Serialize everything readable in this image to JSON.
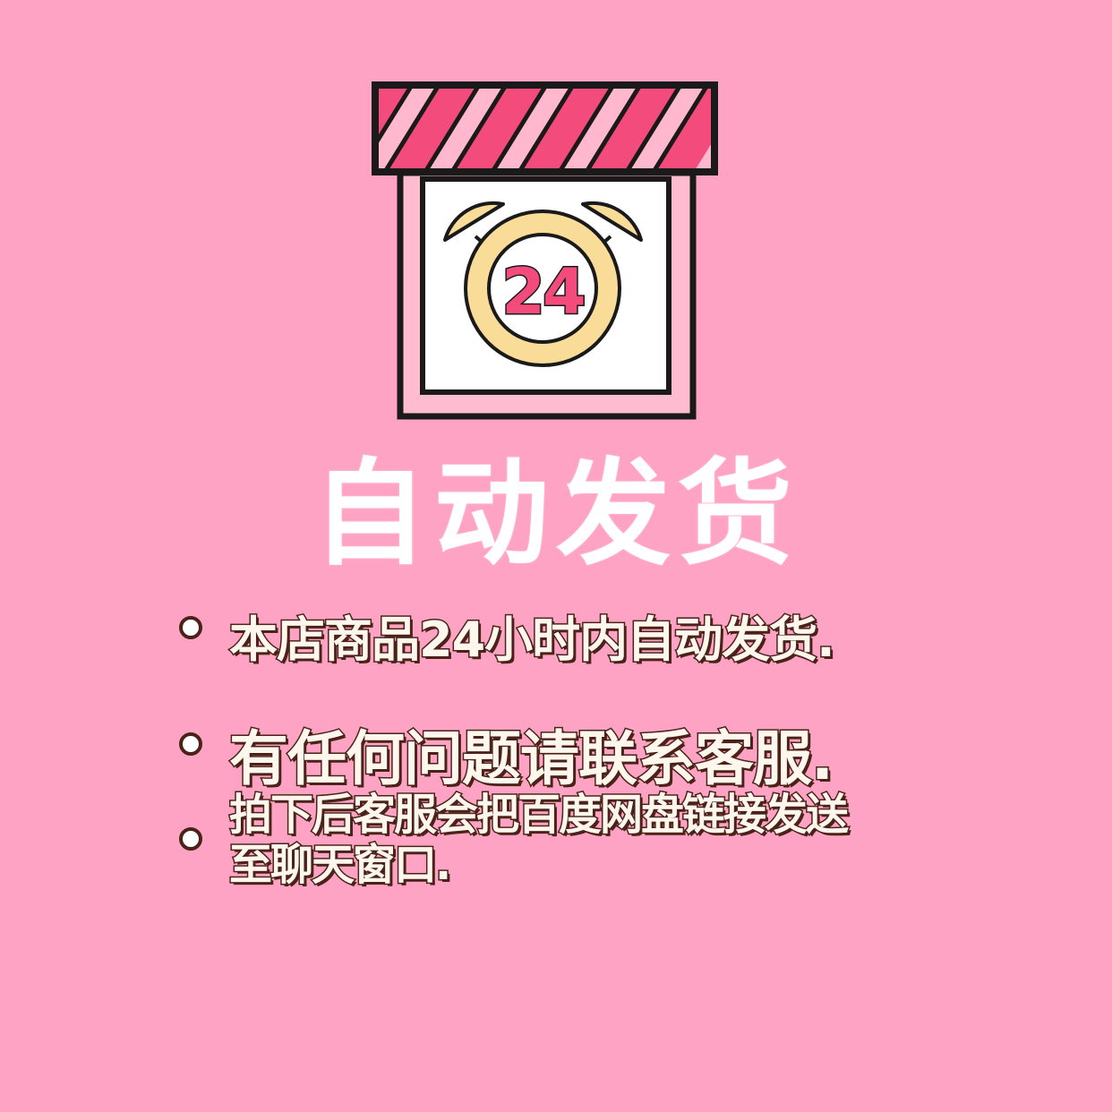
{
  "clock": {
    "number": "24"
  },
  "title": "自动发货",
  "bullets": [
    {
      "lines": [
        "本店商品24小时内自动发货."
      ]
    },
    {
      "lines": [
        "有任何问题请联系客服."
      ]
    },
    {
      "lines": [
        "拍下后客服会把百度网盘链接发送",
        "至聊天窗口."
      ]
    }
  ],
  "colors": {
    "background": "#ffa3c4",
    "awning_dark": "#f24b7c",
    "awning_light": "#ffb8cd",
    "outline": "#1a1a1a",
    "clock_body": "#f9dc98",
    "number": "#f24b7c",
    "text_fill": "#fff6ee",
    "text_outline": "#4a2218"
  }
}
